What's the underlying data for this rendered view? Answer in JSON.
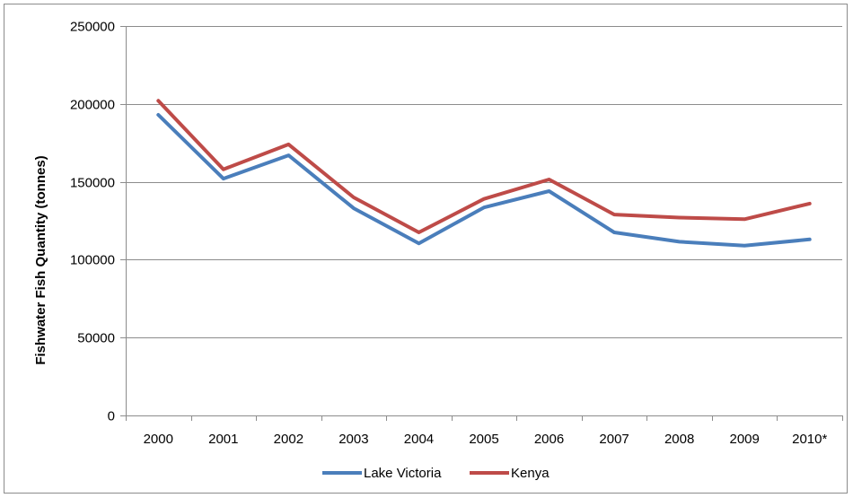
{
  "chart_data": {
    "type": "line",
    "title": "",
    "xlabel": "",
    "ylabel": "Fishwater Fish Quantity (tonnes)",
    "ylim": [
      0,
      250000
    ],
    "yticks": [
      "0",
      "50000",
      "100000",
      "150000",
      "200000",
      "250000"
    ],
    "grid": true,
    "legend_position": "bottom",
    "categories": [
      "2000",
      "2001",
      "2002",
      "2003",
      "2004",
      "2005",
      "2006",
      "2007",
      "2008",
      "2009",
      "2010*"
    ],
    "series": [
      {
        "name": "Lake Victoria",
        "color": "#4a7ebb",
        "values": [
          193000,
          152000,
          167000,
          133000,
          110500,
          133500,
          144000,
          117500,
          111500,
          109000,
          113000
        ]
      },
      {
        "name": "Kenya",
        "color": "#be4b48",
        "values": [
          202000,
          158000,
          174000,
          140000,
          117500,
          139000,
          151500,
          129000,
          127000,
          126000,
          136000
        ]
      }
    ]
  }
}
